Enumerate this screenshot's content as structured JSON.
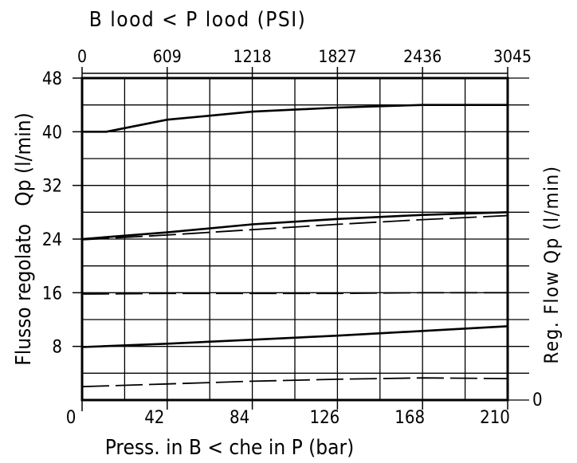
{
  "chart_data": {
    "type": "line",
    "x_axis_bottom": {
      "label": "Press. in B < che in P (bar)",
      "range": [
        0,
        210
      ],
      "ticks": [
        "0",
        "42",
        "84",
        "126",
        "168",
        "210"
      ]
    },
    "x_axis_top": {
      "label": "B lood < P lood (PSI)",
      "range": [
        0,
        3045
      ],
      "ticks": [
        "0",
        "609",
        "1218",
        "1827",
        "2436",
        "3045"
      ]
    },
    "y_axis_left": {
      "label": "Flusso regolato   Qp (l/min)",
      "range": [
        0,
        48
      ],
      "ticks": [
        "0",
        "8",
        "16",
        "24",
        "32",
        "40",
        "48"
      ]
    },
    "y_axis_right": {
      "label": "Reg. Flow Qp (l/min)",
      "ticks": [
        "0"
      ]
    },
    "grid": true,
    "series": [
      {
        "style": "solid",
        "x": [
          0,
          12,
          42,
          84,
          126,
          168,
          210
        ],
        "y": [
          40,
          40,
          41.8,
          43,
          43.6,
          44,
          44
        ]
      },
      {
        "style": "solid",
        "x": [
          0,
          42,
          84,
          126,
          168,
          210
        ],
        "y": [
          24,
          25,
          26.2,
          27,
          27.6,
          28
        ]
      },
      {
        "style": "dashed",
        "x": [
          0,
          42,
          84,
          126,
          168,
          210
        ],
        "y": [
          23.9,
          24.6,
          25.4,
          26.2,
          26.9,
          27.5
        ]
      },
      {
        "style": "dashed",
        "x": [
          0,
          42,
          84,
          126,
          168,
          210
        ],
        "y": [
          15.8,
          15.9,
          15.9,
          15.9,
          16,
          16
        ]
      },
      {
        "style": "solid",
        "x": [
          0,
          42,
          84,
          126,
          168,
          210
        ],
        "y": [
          7.9,
          8.4,
          9,
          9.6,
          10.3,
          11
        ]
      },
      {
        "style": "dashed",
        "x": [
          0,
          42,
          84,
          126,
          168,
          210
        ],
        "y": [
          2,
          2.4,
          2.8,
          3.1,
          3.3,
          3.2
        ]
      }
    ]
  }
}
